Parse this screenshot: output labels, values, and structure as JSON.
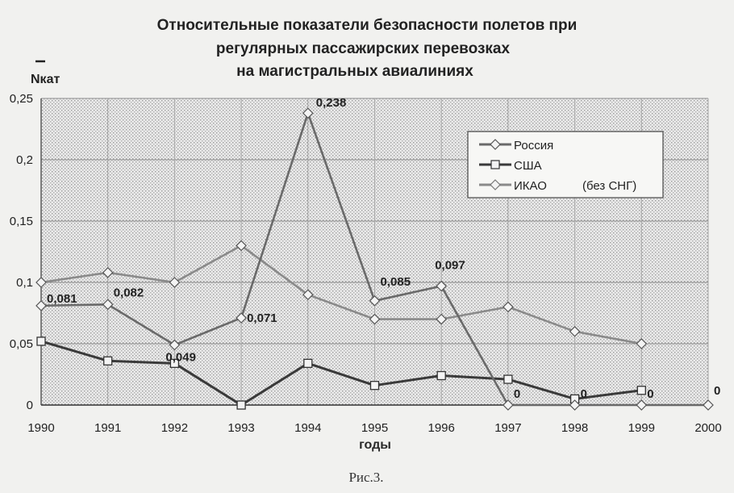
{
  "figure_caption": "Рис.3.",
  "chart_data": {
    "type": "line",
    "title_lines": [
      "Относительные показатели безопасности полетов при",
      "регулярных пассажирских перевозках",
      "на магистральных авиалиниях"
    ],
    "ylabel": "Nкат",
    "xlabel": "годы",
    "x": [
      "1990",
      "1991",
      "1992",
      "1993",
      "1994",
      "1995",
      "1996",
      "1997",
      "1998",
      "1999",
      "2000"
    ],
    "y_ticks": [
      "0",
      "0,05",
      "0,1",
      "0,15",
      "0,2",
      "0,25"
    ],
    "ylim": [
      0,
      0.25
    ],
    "grid": true,
    "legend_position": "top-right",
    "series": [
      {
        "name": "Россия",
        "marker": "diamond",
        "color": "#6a6a6a",
        "values": [
          0.081,
          0.082,
          0.049,
          0.071,
          0.238,
          0.085,
          0.097,
          0,
          0,
          0,
          0
        ],
        "labels": [
          "0,081",
          "0,082",
          "0,049",
          "0,071",
          "0,238",
          "0,085",
          "0,097",
          "0",
          "0",
          "0",
          "0"
        ]
      },
      {
        "name": "США",
        "marker": "square",
        "color": "#3a3a3a",
        "values": [
          0.052,
          0.036,
          0.034,
          0.0,
          0.034,
          0.016,
          0.024,
          0.021,
          0.005,
          0.012,
          null
        ]
      },
      {
        "name": "ИКАО",
        "legend_note": "(без СНГ)",
        "marker": "diamond",
        "color": "#8a8a8a",
        "values": [
          0.1,
          0.108,
          0.1,
          0.13,
          0.09,
          0.07,
          0.07,
          0.08,
          0.06,
          0.05,
          null
        ]
      }
    ]
  }
}
